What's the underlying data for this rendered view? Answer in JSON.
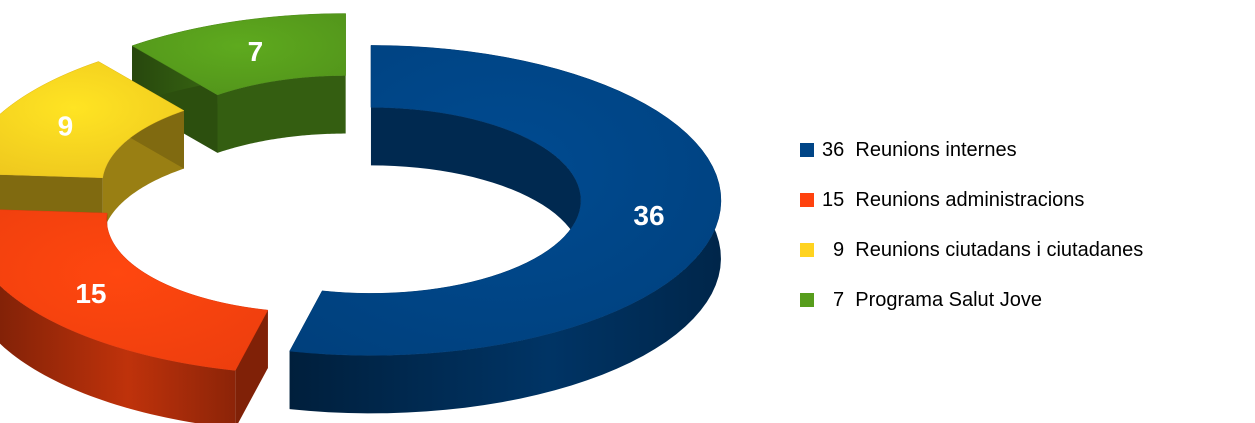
{
  "chart_data": {
    "type": "pie",
    "variant": "3d-donut-exploded",
    "title": "",
    "slices": [
      {
        "label": "Reunions internes",
        "value": 36,
        "value_label": "36",
        "legend_number": "36",
        "color": "#004586"
      },
      {
        "label": "Reunions administracions",
        "value": 15,
        "value_label": "15",
        "legend_number": "15",
        "color": "#FF420E"
      },
      {
        "label": "Reunions ciutadans i ciutadanes",
        "value": 9,
        "value_label": "9",
        "legend_number": "9",
        "color": "#FFD320"
      },
      {
        "label": "Programa Salut Jove",
        "value": 7,
        "value_label": "7",
        "legend_number": "7",
        "color": "#579D1C"
      }
    ],
    "legend_position": "right"
  }
}
